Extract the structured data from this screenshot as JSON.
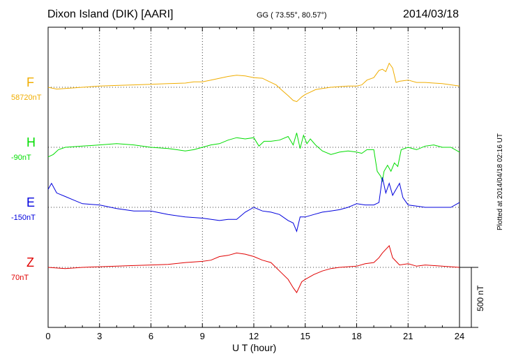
{
  "header": {
    "station": "Dixon Island (DIK)  [AARI]",
    "coords": "GG ( 73.55°,  80.57°)",
    "date": "2014/03/18"
  },
  "footer": {
    "plotted": "Plotted at 2014/04/18 02:16 UT"
  },
  "chart_data": {
    "type": "line",
    "xlabel": "U T (hour)",
    "xlim": [
      0,
      24
    ],
    "xticks": [
      "0",
      "3",
      "6",
      "9",
      "12",
      "15",
      "18",
      "21",
      "24"
    ],
    "scale_bar": "500 nT",
    "scale_nT": 500,
    "grid": true,
    "series": [
      {
        "name": "F",
        "baseline_label": "58720nT",
        "color": "#f0ad00",
        "x": [
          0,
          0.5,
          1,
          1.5,
          2,
          3,
          4,
          5,
          6,
          7,
          8,
          8.5,
          9,
          9.5,
          10,
          10.5,
          11,
          11.5,
          12,
          12.5,
          13,
          13.3,
          13.6,
          14,
          14.3,
          14.5,
          14.8,
          15,
          15.3,
          15.6,
          16,
          16.5,
          17,
          17.5,
          18,
          18.3,
          18.6,
          19,
          19.3,
          19.5,
          19.7,
          19.9,
          20.1,
          20.3,
          20.5,
          21,
          21.5,
          22,
          22.5,
          23,
          24
        ],
        "values": [
          0,
          -15,
          -10,
          -5,
          0,
          10,
          15,
          20,
          25,
          30,
          35,
          45,
          45,
          60,
          75,
          90,
          100,
          95,
          80,
          75,
          40,
          20,
          -20,
          -70,
          -110,
          -120,
          -80,
          -60,
          -40,
          -20,
          -10,
          0,
          5,
          10,
          10,
          20,
          60,
          80,
          140,
          150,
          130,
          200,
          160,
          40,
          50,
          60,
          40,
          40,
          35,
          30,
          10
        ]
      },
      {
        "name": "H",
        "baseline_label": "-90nT",
        "color": "#00dd00",
        "x": [
          0,
          0.3,
          0.6,
          1,
          1.5,
          2,
          3,
          4,
          5,
          6,
          7,
          8,
          8.5,
          9,
          9.5,
          10,
          10.5,
          11,
          11.5,
          12,
          12.3,
          12.6,
          13,
          13.5,
          14,
          14.3,
          14.5,
          14.7,
          14.9,
          15.1,
          15.3,
          15.6,
          16,
          16.5,
          17,
          17.5,
          18,
          18.3,
          18.6,
          19,
          19.2,
          19.4,
          19.5,
          19.6,
          19.8,
          20,
          20.2,
          20.4,
          20.6,
          21,
          21.5,
          22,
          22.5,
          23,
          23.5,
          24
        ],
        "values": [
          -80,
          -60,
          -20,
          0,
          5,
          10,
          20,
          30,
          20,
          0,
          -10,
          -30,
          -20,
          0,
          20,
          30,
          60,
          80,
          70,
          80,
          10,
          50,
          50,
          60,
          90,
          20,
          120,
          -10,
          100,
          30,
          70,
          20,
          -30,
          -60,
          -40,
          -30,
          -40,
          -50,
          -20,
          -20,
          -200,
          -240,
          -280,
          -200,
          -150,
          -200,
          -130,
          -160,
          -20,
          0,
          -20,
          10,
          20,
          0,
          0,
          -40
        ]
      },
      {
        "name": "E",
        "baseline_label": "-150nT",
        "color": "#0000dd",
        "x": [
          0,
          0.2,
          0.5,
          1,
          1.5,
          2,
          3,
          4,
          5,
          6,
          7,
          8,
          9,
          10,
          10.5,
          11,
          11.5,
          12,
          12.5,
          13,
          13.5,
          14,
          14.3,
          14.5,
          14.7,
          15,
          15.5,
          16,
          16.5,
          17,
          17.5,
          18,
          18.5,
          19,
          19.3,
          19.5,
          19.7,
          19.9,
          20.1,
          20.3,
          20.5,
          20.7,
          21,
          21.5,
          22,
          23,
          23.5,
          24
        ],
        "values": [
          150,
          200,
          120,
          90,
          60,
          30,
          20,
          -10,
          -30,
          -30,
          -60,
          -80,
          -90,
          -110,
          -100,
          -100,
          -40,
          0,
          -30,
          -40,
          -60,
          -110,
          -130,
          -200,
          -80,
          -80,
          -60,
          -40,
          -30,
          -20,
          0,
          30,
          20,
          20,
          40,
          250,
          120,
          200,
          100,
          150,
          200,
          80,
          20,
          10,
          0,
          0,
          0,
          40
        ]
      },
      {
        "name": "Z",
        "baseline_label": "70nT",
        "color": "#e00000",
        "x": [
          0,
          1,
          2,
          3,
          4,
          5,
          6,
          7,
          8,
          9,
          9.5,
          10,
          10.5,
          11,
          11.5,
          12,
          12.5,
          13,
          13.5,
          14,
          14.3,
          14.5,
          14.8,
          15,
          15.5,
          16,
          16.5,
          17,
          17.5,
          18,
          18.5,
          19,
          19.3,
          19.5,
          19.7,
          19.9,
          20.1,
          20.3,
          20.5,
          21,
          21.5,
          22,
          23,
          24
        ],
        "values": [
          0,
          -10,
          0,
          5,
          10,
          15,
          20,
          25,
          40,
          50,
          60,
          90,
          100,
          120,
          110,
          90,
          60,
          40,
          -30,
          -100,
          -170,
          -210,
          -120,
          -100,
          -60,
          -30,
          -10,
          0,
          5,
          10,
          30,
          40,
          80,
          120,
          150,
          180,
          80,
          50,
          20,
          30,
          10,
          20,
          10,
          0
        ]
      }
    ]
  }
}
